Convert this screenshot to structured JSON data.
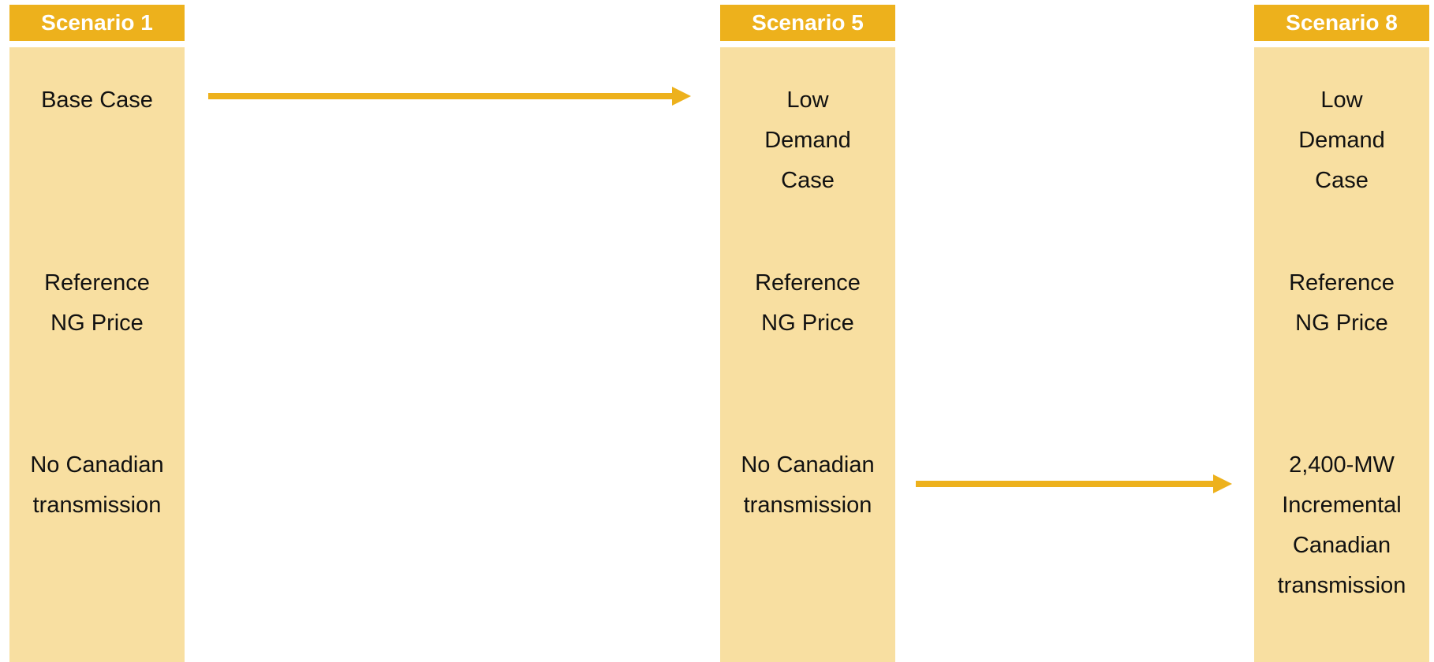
{
  "columns": [
    {
      "header": "Scenario 1",
      "rows": [
        [
          "Base Case"
        ],
        [
          "Reference",
          "NG Price"
        ],
        [
          "No Canadian",
          "transmission"
        ]
      ]
    },
    {
      "header": "Scenario 5",
      "rows": [
        [
          "Low",
          "Demand",
          "Case"
        ],
        [
          "Reference",
          "NG Price"
        ],
        [
          "No Canadian",
          "transmission"
        ]
      ]
    },
    {
      "header": "Scenario 8",
      "rows": [
        [
          "Low",
          "Demand",
          "Case"
        ],
        [
          "Reference",
          "NG Price"
        ],
        [
          "2,400-MW",
          "Incremental",
          "Canadian",
          "transmission"
        ]
      ]
    }
  ]
}
